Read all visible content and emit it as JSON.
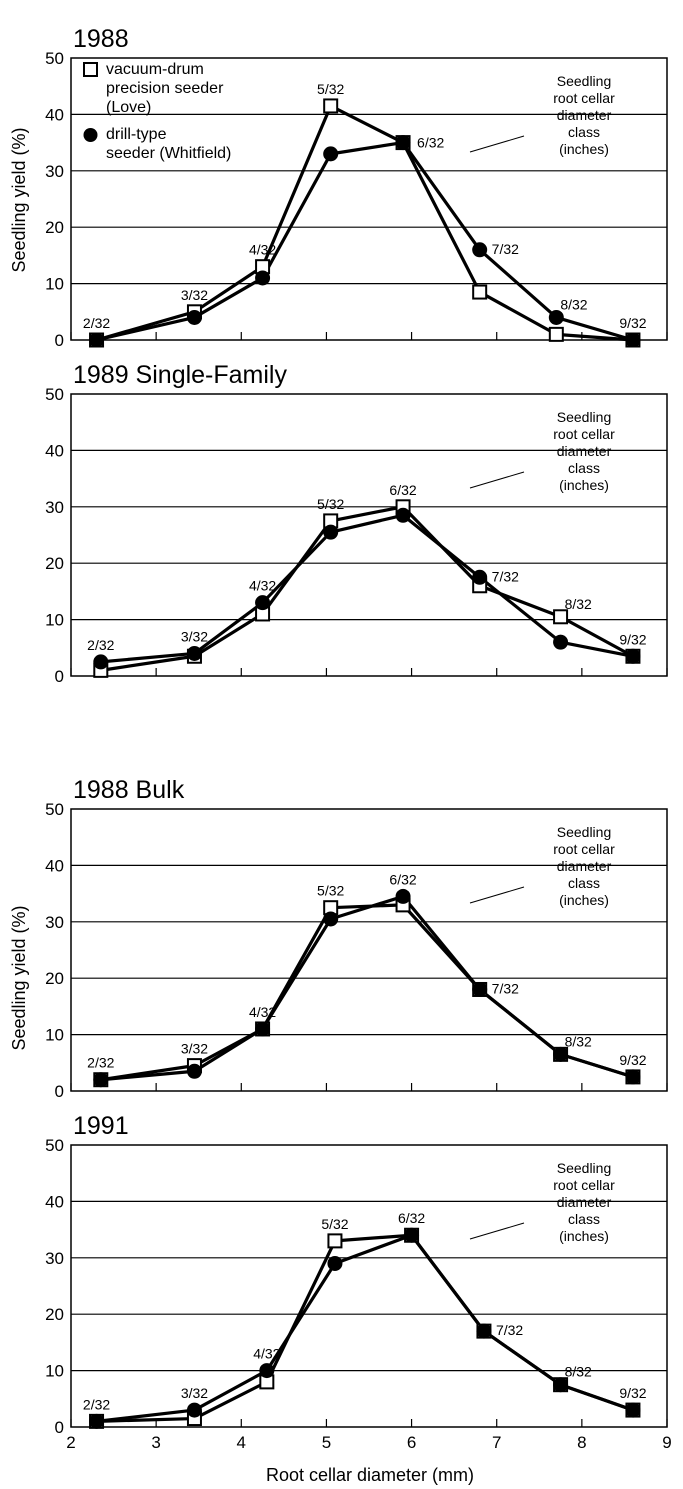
{
  "ui": {
    "y_axis_label": "Seedling yield (%)",
    "x_axis_label": "Root cellar diameter (mm)"
  },
  "annotation": {
    "lines": [
      "Seedling",
      "root cellar",
      "diameter",
      "class",
      "(inches)"
    ]
  },
  "legend": {
    "items": [
      {
        "marker": "open-square",
        "lines": [
          "vacuum-drum",
          "precision seeder",
          "(Love)"
        ]
      },
      {
        "marker": "filled-circle",
        "lines": [
          "drill-type",
          "seeder (Whitfield)"
        ]
      }
    ]
  },
  "colors": {
    "ink": "#000000",
    "open_marker_fill": "#ffffff",
    "background": "#ffffff"
  },
  "chart_data": [
    {
      "type": "line",
      "title": "1988",
      "xlabel": "Root cellar diameter (mm)",
      "ylabel": "Seedling yield (%)",
      "xlim": [
        2,
        9
      ],
      "ylim": [
        0,
        50
      ],
      "yticks": [
        0,
        10,
        20,
        30,
        40,
        50
      ],
      "xticks": [
        2,
        3,
        4,
        5,
        6,
        7,
        8,
        9
      ],
      "grid": "horizontal",
      "legend": "top-left",
      "point_labels": [
        "2/32",
        "3/32",
        "4/32",
        "5/32",
        "6/32",
        "7/32",
        "8/32",
        "9/32"
      ],
      "series": [
        {
          "name": "vacuum-drum precision seeder (Love)",
          "marker": "open-square",
          "x": [
            2.3,
            3.45,
            4.25,
            5.05,
            5.9,
            6.8,
            7.7,
            8.6
          ],
          "y": [
            0,
            5,
            13,
            41.5,
            35,
            8.5,
            1,
            0
          ]
        },
        {
          "name": "drill-type seeder (Whitfield)",
          "marker": "filled-circle",
          "x": [
            2.3,
            3.45,
            4.25,
            5.05,
            5.9,
            6.8,
            7.7,
            8.6
          ],
          "y": [
            0,
            4,
            11,
            33,
            35,
            16,
            4,
            0
          ]
        }
      ]
    },
    {
      "type": "line",
      "title": "1989 Single-Family",
      "xlabel": "Root cellar diameter (mm)",
      "ylabel": "Seedling yield (%)",
      "xlim": [
        2,
        9
      ],
      "ylim": [
        0,
        50
      ],
      "yticks": [
        0,
        10,
        20,
        30,
        40,
        50
      ],
      "xticks": [
        2,
        3,
        4,
        5,
        6,
        7,
        8,
        9
      ],
      "grid": "horizontal",
      "point_labels": [
        "2/32",
        "3/32",
        "4/32",
        "5/32",
        "6/32",
        "7/32",
        "8/32",
        "9/32"
      ],
      "series": [
        {
          "name": "vacuum-drum precision seeder (Love)",
          "marker": "open-square",
          "x": [
            2.35,
            3.45,
            4.25,
            5.05,
            5.9,
            6.8,
            7.75,
            8.6
          ],
          "y": [
            1,
            3.5,
            11,
            27.5,
            30,
            16,
            10.5,
            3.5
          ]
        },
        {
          "name": "drill-type seeder (Whitfield)",
          "marker": "filled-circle",
          "x": [
            2.35,
            3.45,
            4.25,
            5.05,
            5.9,
            6.8,
            7.75,
            8.6
          ],
          "y": [
            2.5,
            4,
            13,
            25.5,
            28.5,
            17.5,
            6,
            3.5
          ]
        }
      ]
    },
    {
      "type": "line",
      "title": "1988 Bulk",
      "xlabel": "Root cellar diameter (mm)",
      "ylabel": "Seedling yield (%)",
      "xlim": [
        2,
        9
      ],
      "ylim": [
        0,
        50
      ],
      "yticks": [
        0,
        10,
        20,
        30,
        40,
        50
      ],
      "xticks": [
        2,
        3,
        4,
        5,
        6,
        7,
        8,
        9
      ],
      "grid": "horizontal",
      "point_labels": [
        "2/32",
        "3/32",
        "4/32",
        "5/32",
        "6/32",
        "7/32",
        "8/32",
        "9/32"
      ],
      "series": [
        {
          "name": "vacuum-drum precision seeder (Love)",
          "marker": "open-square",
          "x": [
            2.35,
            3.45,
            4.25,
            5.05,
            5.9,
            6.8,
            7.75,
            8.6
          ],
          "y": [
            2,
            4.5,
            11,
            32.5,
            33,
            18,
            6.5,
            2.5
          ]
        },
        {
          "name": "drill-type seeder (Whitfield)",
          "marker": "filled-circle",
          "x": [
            2.35,
            3.45,
            4.25,
            5.05,
            5.9,
            6.8,
            7.75,
            8.6
          ],
          "y": [
            2,
            3.5,
            11,
            30.5,
            34.5,
            18,
            6.5,
            2.5
          ]
        }
      ]
    },
    {
      "type": "line",
      "title": "1991",
      "xlabel": "Root cellar diameter (mm)",
      "ylabel": "Seedling yield (%)",
      "xlim": [
        2,
        9
      ],
      "ylim": [
        0,
        50
      ],
      "yticks": [
        0,
        10,
        20,
        30,
        40,
        50
      ],
      "xticks": [
        2,
        3,
        4,
        5,
        6,
        7,
        8,
        9
      ],
      "grid": "horizontal",
      "point_labels": [
        "2/32",
        "3/32",
        "4/32",
        "5/32",
        "6/32",
        "7/32",
        "8/32",
        "9/32"
      ],
      "series": [
        {
          "name": "vacuum-drum precision seeder (Love)",
          "marker": "open-square",
          "x": [
            2.3,
            3.45,
            4.3,
            5.1,
            6.0,
            6.85,
            7.75,
            8.6
          ],
          "y": [
            1,
            1.5,
            8,
            33,
            34,
            17,
            7.5,
            3
          ]
        },
        {
          "name": "drill-type seeder (Whitfield)",
          "marker": "filled-circle",
          "x": [
            2.3,
            3.45,
            4.3,
            5.1,
            6.0,
            6.85,
            7.75,
            8.6
          ],
          "y": [
            1,
            3,
            10,
            29,
            34,
            17,
            7.5,
            3
          ]
        }
      ]
    }
  ]
}
